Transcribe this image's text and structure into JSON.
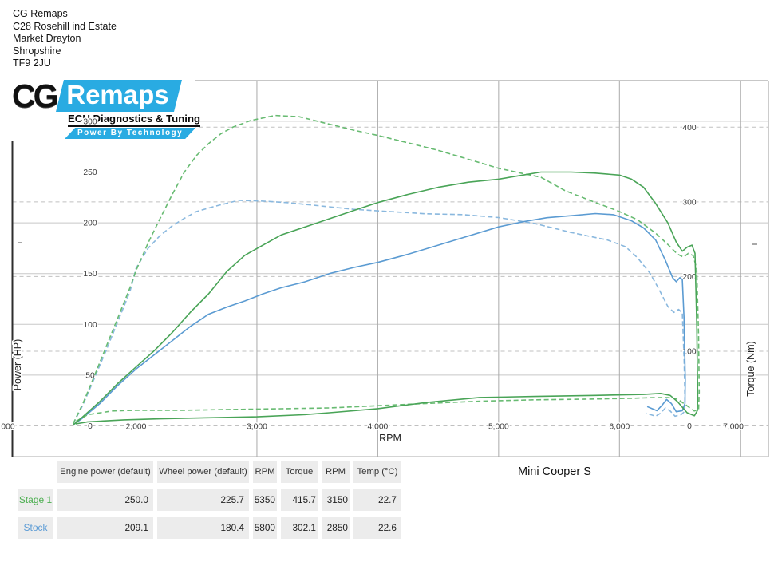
{
  "header": {
    "address_lines": [
      "CG Remaps",
      "C28 Rosehill ind Estate",
      "Market Drayton",
      "Shropshire",
      "TF9 2JU"
    ]
  },
  "logo": {
    "cg": "CG",
    "remaps": "Remaps",
    "subtitle": "ECU Diagnostics & Tuning",
    "tagline": "Power By Technology",
    "blue": "#29abe2"
  },
  "vehicle": {
    "model": "Mini Cooper S"
  },
  "chart_data": {
    "type": "line",
    "xlabel": "RPM",
    "ylabel_left": "Power (HP)",
    "ylabel_right": "Torque (Nm)",
    "x_ticks": [
      {
        "rpm": 1000,
        "label": "000"
      },
      {
        "rpm": 2000,
        "label": "2,000"
      },
      {
        "rpm": 3000,
        "label": "3,000"
      },
      {
        "rpm": 4000,
        "label": "4,000"
      },
      {
        "rpm": 5000,
        "label": "5,000"
      },
      {
        "rpm": 6000,
        "label": "6,000"
      },
      {
        "rpm": 7000,
        "label": "7,000"
      }
    ],
    "power_ticks": [
      {
        "v": 0,
        "label": "0"
      },
      {
        "v": 50,
        "label": "50"
      },
      {
        "v": 100,
        "label": "100"
      },
      {
        "v": 150,
        "label": "150"
      },
      {
        "v": 200,
        "label": "200"
      },
      {
        "v": 250,
        "label": "250"
      },
      {
        "v": 300,
        "label": "300"
      }
    ],
    "torque_ticks": [
      {
        "v": 0,
        "label": "0"
      },
      {
        "v": 100,
        "label": "100"
      },
      {
        "v": 200,
        "label": "200"
      },
      {
        "v": 300,
        "label": "300"
      },
      {
        "v": 400,
        "label": "400"
      }
    ],
    "x_range_rpm": [
      1000,
      7250
    ],
    "power_axis_range": [
      0,
      340
    ],
    "torque_axis_range": [
      0,
      462
    ],
    "grid": "on",
    "series": [
      {
        "name": "Stock torque (dashed blue)",
        "color": "#8ab8de",
        "dash": true,
        "axis": "torque",
        "points": [
          [
            1480,
            3
          ],
          [
            1560,
            28
          ],
          [
            1650,
            62
          ],
          [
            1750,
            100
          ],
          [
            1850,
            140
          ],
          [
            1950,
            180
          ],
          [
            2000,
            211
          ],
          [
            2100,
            238
          ],
          [
            2200,
            255
          ],
          [
            2300,
            268
          ],
          [
            2400,
            278
          ],
          [
            2500,
            287
          ],
          [
            2650,
            294
          ],
          [
            2850,
            302.1
          ],
          [
            3050,
            301
          ],
          [
            3250,
            299
          ],
          [
            3500,
            295
          ],
          [
            3800,
            290
          ],
          [
            4100,
            287
          ],
          [
            4400,
            284
          ],
          [
            4700,
            283
          ],
          [
            5000,
            279
          ],
          [
            5300,
            271
          ],
          [
            5600,
            259
          ],
          [
            5900,
            249
          ],
          [
            6050,
            240
          ],
          [
            6150,
            225
          ],
          [
            6250,
            205
          ],
          [
            6320,
            185
          ],
          [
            6400,
            160
          ],
          [
            6450,
            152
          ],
          [
            6490,
            156
          ],
          [
            6520,
            151
          ],
          [
            6535,
            90
          ],
          [
            6542,
            35
          ],
          [
            6538,
            19
          ],
          [
            6510,
            15
          ],
          [
            6460,
            13
          ],
          [
            6420,
            20
          ],
          [
            6380,
            24
          ],
          [
            6340,
            17
          ],
          [
            6300,
            13
          ],
          [
            6260,
            15
          ],
          [
            6220,
            17
          ]
        ]
      },
      {
        "name": "Stock power (solid blue)",
        "color": "#5b9bd2",
        "dash": false,
        "axis": "power",
        "points": [
          [
            1480,
            1
          ],
          [
            1550,
            7
          ],
          [
            1700,
            22
          ],
          [
            1850,
            40
          ],
          [
            2000,
            56
          ],
          [
            2150,
            70
          ],
          [
            2300,
            84
          ],
          [
            2450,
            98
          ],
          [
            2600,
            110
          ],
          [
            2750,
            117
          ],
          [
            2900,
            123
          ],
          [
            3050,
            130
          ],
          [
            3200,
            136
          ],
          [
            3400,
            142
          ],
          [
            3600,
            150
          ],
          [
            3800,
            156
          ],
          [
            4000,
            161
          ],
          [
            4250,
            169
          ],
          [
            4500,
            178
          ],
          [
            4750,
            187
          ],
          [
            5000,
            196
          ],
          [
            5200,
            201
          ],
          [
            5400,
            205
          ],
          [
            5600,
            207
          ],
          [
            5800,
            209.1
          ],
          [
            5950,
            208
          ],
          [
            6100,
            202
          ],
          [
            6200,
            195
          ],
          [
            6300,
            183
          ],
          [
            6380,
            163
          ],
          [
            6440,
            146
          ],
          [
            6470,
            142
          ],
          [
            6500,
            146
          ],
          [
            6520,
            144
          ],
          [
            6535,
            105
          ],
          [
            6545,
            45
          ],
          [
            6542,
            22
          ],
          [
            6520,
            15
          ],
          [
            6470,
            14
          ],
          [
            6430,
            22
          ],
          [
            6390,
            26
          ],
          [
            6350,
            20
          ],
          [
            6310,
            15
          ],
          [
            6270,
            17
          ],
          [
            6230,
            19
          ]
        ]
      },
      {
        "name": "Stage 1 torque (dashed green)",
        "color": "#68bb72",
        "dash": true,
        "axis": "torque",
        "points": [
          [
            1480,
            3
          ],
          [
            1560,
            30
          ],
          [
            1650,
            65
          ],
          [
            1750,
            105
          ],
          [
            1850,
            145
          ],
          [
            1950,
            185
          ],
          [
            2000,
            208
          ],
          [
            2100,
            245
          ],
          [
            2200,
            278
          ],
          [
            2300,
            310
          ],
          [
            2400,
            340
          ],
          [
            2500,
            362
          ],
          [
            2600,
            378
          ],
          [
            2700,
            391
          ],
          [
            2800,
            400
          ],
          [
            2950,
            409
          ],
          [
            3150,
            415.7
          ],
          [
            3350,
            414
          ],
          [
            3550,
            406
          ],
          [
            3800,
            396
          ],
          [
            4000,
            389
          ],
          [
            4250,
            379
          ],
          [
            4500,
            369
          ],
          [
            4750,
            357
          ],
          [
            5000,
            345
          ],
          [
            5200,
            338
          ],
          [
            5350,
            333
          ],
          [
            5550,
            315
          ],
          [
            5788,
            300
          ],
          [
            6000,
            287
          ],
          [
            6150,
            276
          ],
          [
            6300,
            258
          ],
          [
            6400,
            243
          ],
          [
            6480,
            230
          ],
          [
            6530,
            226
          ],
          [
            6570,
            231
          ],
          [
            6610,
            228
          ],
          [
            6640,
            210
          ],
          [
            6655,
            120
          ],
          [
            6660,
            45
          ],
          [
            6655,
            22
          ],
          [
            6620,
            20
          ],
          [
            6550,
            28
          ],
          [
            6480,
            36
          ],
          [
            6400,
            38
          ],
          [
            6300,
            38
          ],
          [
            6100,
            37
          ],
          [
            5800,
            36
          ],
          [
            5300,
            35
          ],
          [
            4841,
            33
          ],
          [
            4400,
            30
          ],
          [
            4000,
            27
          ],
          [
            3600,
            24
          ],
          [
            3200,
            23
          ],
          [
            2800,
            22
          ],
          [
            2400,
            21
          ],
          [
            2000,
            21
          ],
          [
            1800,
            20
          ],
          [
            1600,
            15
          ],
          [
            1500,
            6
          ]
        ]
      },
      {
        "name": "Stage 1 power (solid green)",
        "color": "#49a457",
        "dash": false,
        "axis": "power",
        "points": [
          [
            1480,
            1
          ],
          [
            1550,
            8
          ],
          [
            1700,
            24
          ],
          [
            1850,
            42
          ],
          [
            2000,
            58
          ],
          [
            2150,
            74
          ],
          [
            2300,
            92
          ],
          [
            2450,
            112
          ],
          [
            2600,
            130
          ],
          [
            2750,
            152
          ],
          [
            2900,
            168
          ],
          [
            3050,
            178
          ],
          [
            3200,
            188
          ],
          [
            3400,
            196
          ],
          [
            3600,
            204
          ],
          [
            3800,
            212
          ],
          [
            4000,
            220
          ],
          [
            4250,
            228
          ],
          [
            4500,
            235
          ],
          [
            4750,
            240
          ],
          [
            5000,
            243
          ],
          [
            5200,
            247
          ],
          [
            5350,
            250
          ],
          [
            5600,
            250
          ],
          [
            5800,
            249
          ],
          [
            6000,
            247
          ],
          [
            6100,
            243
          ],
          [
            6200,
            235
          ],
          [
            6300,
            219
          ],
          [
            6400,
            200
          ],
          [
            6470,
            181
          ],
          [
            6520,
            172
          ],
          [
            6560,
            176
          ],
          [
            6600,
            178
          ],
          [
            6625,
            170
          ],
          [
            6640,
            100
          ],
          [
            6648,
            30
          ],
          [
            6645,
            15
          ],
          [
            6620,
            10
          ],
          [
            6560,
            13
          ],
          [
            6480,
            24
          ],
          [
            6420,
            30
          ],
          [
            6340,
            32
          ],
          [
            6200,
            31
          ],
          [
            5800,
            30
          ],
          [
            5300,
            29
          ],
          [
            4841,
            28
          ],
          [
            4400,
            23
          ],
          [
            4000,
            17
          ],
          [
            3600,
            13
          ],
          [
            3385,
            11
          ],
          [
            3000,
            9
          ],
          [
            2600,
            8
          ],
          [
            2200,
            7
          ],
          [
            1900,
            6
          ],
          [
            1600,
            4
          ],
          [
            1500,
            2
          ]
        ]
      }
    ]
  },
  "table": {
    "headers": [
      "Engine power (default)",
      "Wheel power (default)",
      "RPM",
      "Torque",
      "RPM",
      "Temp (°C)"
    ],
    "rows": [
      {
        "label": "Stage 1",
        "color": "#4caf50",
        "values": [
          "250.0",
          "225.7",
          "5350",
          "415.7",
          "3150",
          "22.7"
        ]
      },
      {
        "label": "Stock",
        "color": "#5b9bd5",
        "values": [
          "209.1",
          "180.4",
          "5800",
          "302.1",
          "2850",
          "22.6"
        ]
      }
    ]
  }
}
